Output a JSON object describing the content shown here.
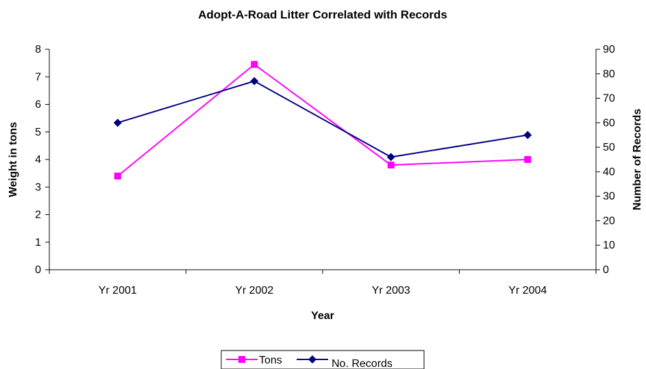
{
  "chart_data": {
    "type": "line",
    "title": "Adopt-A-Road Litter Correlated with Records",
    "xlabel": "Year",
    "ylabel": "Weight in tons",
    "y2label": "Number of Records",
    "categories": [
      "Yr 2001",
      "Yr 2002",
      "Yr 2003",
      "Yr 2004"
    ],
    "ylim": [
      0,
      8
    ],
    "y2lim": [
      0,
      90
    ],
    "yticks": [
      0,
      1,
      2,
      3,
      4,
      5,
      6,
      7,
      8
    ],
    "y2ticks": [
      0,
      10,
      20,
      30,
      40,
      50,
      60,
      70,
      80,
      90
    ],
    "grid": false,
    "legend_position": "bottom",
    "series": [
      {
        "name": "Tons",
        "axis": "left",
        "color": "#ff00ff",
        "marker": "square",
        "values": [
          3.4,
          7.45,
          3.8,
          4.0
        ]
      },
      {
        "name": "No. Records",
        "axis": "right",
        "color": "#000080",
        "marker": "diamond",
        "values": [
          60,
          77,
          46,
          55
        ]
      }
    ]
  }
}
